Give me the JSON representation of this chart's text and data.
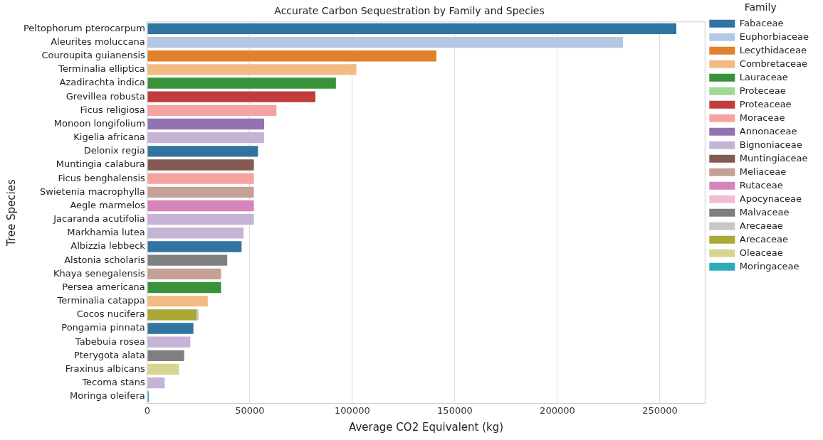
{
  "chart_data": {
    "type": "bar",
    "orientation": "horizontal",
    "title": "Accurate Carbon Sequestration by Family and Species",
    "xlabel": "Average CO2 Equivalent (kg)",
    "ylabel": "Tree Species",
    "legend_title": "Family",
    "legend": "top right",
    "grid": "x",
    "categories": [
      "Peltophorum pterocarpum",
      "Aleurites moluccana",
      "Couroupita guianensis",
      "Terminalia elliptica",
      "Azadirachta indica",
      "Grevillea robusta",
      "Ficus religiosa",
      "Monoon longifolium",
      "Kigelia africana",
      "Delonix regia",
      "Muntingia calabura",
      "Ficus benghalensis",
      "Swietenia macrophylla",
      "Aegle marmelos",
      "Jacaranda acutifolia",
      "Markhamia lutea",
      "Albizzia lebbeck",
      "Alstonia scholaris",
      "Khaya senegalensis",
      "Persea americana",
      "Terminalia catappa",
      "Cocos nucifera",
      "Pongamia pinnata",
      "Tabebuia rosea",
      "Pterygota alata",
      "Fraxinus albicans",
      "Tecoma stans",
      "Moringa oleifera"
    ],
    "xlim": [
      0,
      272000
    ],
    "xticks": [
      0,
      50000,
      100000,
      150000,
      200000,
      250000
    ],
    "series": [
      {
        "name": "Fabaceae",
        "color": "#3274a1",
        "values": [
          258000,
          null,
          null,
          null,
          null,
          null,
          null,
          null,
          null,
          54000,
          null,
          null,
          null,
          null,
          null,
          null,
          46000,
          null,
          null,
          null,
          null,
          null,
          22500,
          null,
          null,
          null,
          null,
          null
        ]
      },
      {
        "name": "Euphorbiaceae",
        "color": "#b4c8e4",
        "values": [
          null,
          232000,
          null,
          null,
          null,
          null,
          null,
          null,
          null,
          null,
          null,
          null,
          null,
          null,
          null,
          null,
          null,
          null,
          null,
          null,
          null,
          null,
          null,
          null,
          null,
          null,
          null,
          null
        ]
      },
      {
        "name": "Lecythidaceae",
        "color": "#e1812c",
        "values": [
          null,
          null,
          141000,
          null,
          null,
          null,
          null,
          null,
          null,
          null,
          null,
          null,
          null,
          null,
          null,
          null,
          null,
          null,
          null,
          null,
          null,
          null,
          null,
          null,
          null,
          null,
          null,
          null
        ]
      },
      {
        "name": "Combretaceae",
        "color": "#f2bb83",
        "values": [
          null,
          null,
          null,
          102000,
          null,
          null,
          null,
          null,
          null,
          null,
          null,
          null,
          null,
          null,
          null,
          null,
          null,
          null,
          null,
          null,
          29500,
          null,
          null,
          null,
          null,
          null,
          null,
          null
        ]
      },
      {
        "name": "Lauraceae",
        "color": "#3a923a",
        "values": [
          null,
          null,
          null,
          null,
          92000,
          null,
          null,
          null,
          null,
          null,
          null,
          null,
          null,
          null,
          null,
          null,
          null,
          null,
          null,
          36000,
          null,
          null,
          null,
          null,
          null,
          null,
          null,
          null
        ]
      },
      {
        "name": "Proteceae",
        "color": "#9fd893",
        "values": [
          null,
          null,
          null,
          null,
          null,
          null,
          null,
          null,
          null,
          null,
          null,
          null,
          null,
          null,
          null,
          null,
          null,
          null,
          null,
          null,
          null,
          null,
          null,
          null,
          null,
          null,
          null,
          null
        ]
      },
      {
        "name": "Proteaceae",
        "color": "#c03d3e",
        "values": [
          null,
          null,
          null,
          null,
          null,
          82000,
          null,
          null,
          null,
          null,
          null,
          null,
          null,
          null,
          null,
          null,
          null,
          null,
          null,
          null,
          null,
          null,
          null,
          null,
          null,
          null,
          null,
          null
        ]
      },
      {
        "name": "Moraceae",
        "color": "#f5a3a1",
        "values": [
          null,
          null,
          null,
          null,
          null,
          null,
          63000,
          null,
          null,
          null,
          null,
          52000,
          null,
          null,
          null,
          null,
          null,
          null,
          null,
          null,
          null,
          null,
          null,
          null,
          null,
          null,
          null,
          null
        ]
      },
      {
        "name": "Annonaceae",
        "color": "#9372b2",
        "values": [
          null,
          null,
          null,
          null,
          null,
          null,
          null,
          57000,
          null,
          null,
          null,
          null,
          null,
          null,
          null,
          null,
          null,
          null,
          null,
          null,
          null,
          null,
          null,
          null,
          null,
          null,
          null,
          null
        ]
      },
      {
        "name": "Bignoniaceae",
        "color": "#c6b4d6",
        "values": [
          null,
          null,
          null,
          null,
          null,
          null,
          null,
          null,
          57000,
          null,
          null,
          null,
          null,
          null,
          52000,
          47000,
          null,
          null,
          null,
          null,
          null,
          null,
          null,
          21000,
          null,
          null,
          8500,
          null
        ]
      },
      {
        "name": "Muntingiaceae",
        "color": "#845b53",
        "values": [
          null,
          null,
          null,
          null,
          null,
          null,
          null,
          null,
          null,
          null,
          52000,
          null,
          null,
          null,
          null,
          null,
          null,
          null,
          null,
          null,
          null,
          null,
          null,
          null,
          null,
          null,
          null,
          null
        ]
      },
      {
        "name": "Meliaceae",
        "color": "#c4a096",
        "values": [
          null,
          null,
          null,
          null,
          null,
          null,
          null,
          null,
          null,
          null,
          null,
          null,
          52000,
          null,
          null,
          null,
          null,
          null,
          36000,
          null,
          null,
          null,
          null,
          null,
          null,
          null,
          null,
          null
        ]
      },
      {
        "name": "Rutaceae",
        "color": "#d684bd",
        "values": [
          null,
          null,
          null,
          null,
          null,
          null,
          null,
          null,
          null,
          null,
          null,
          null,
          null,
          52000,
          null,
          null,
          null,
          null,
          null,
          null,
          null,
          null,
          null,
          null,
          null,
          null,
          null,
          null
        ]
      },
      {
        "name": "Apocynaceae",
        "color": "#f2bcd5",
        "values": [
          null,
          null,
          null,
          null,
          null,
          null,
          null,
          null,
          null,
          null,
          null,
          null,
          null,
          null,
          null,
          null,
          null,
          null,
          null,
          null,
          null,
          null,
          null,
          null,
          null,
          null,
          null,
          null
        ]
      },
      {
        "name": "Malvaceae",
        "color": "#7f7f7f",
        "values": [
          null,
          null,
          null,
          null,
          null,
          null,
          null,
          null,
          null,
          null,
          null,
          null,
          null,
          null,
          null,
          null,
          null,
          39000,
          null,
          null,
          null,
          null,
          null,
          null,
          18000,
          null,
          null,
          null
        ]
      },
      {
        "name": "Arecaeae",
        "color": "#c7c7c7",
        "values": [
          null,
          null,
          null,
          null,
          null,
          null,
          null,
          null,
          null,
          null,
          null,
          null,
          null,
          null,
          null,
          null,
          null,
          null,
          null,
          null,
          null,
          25000,
          null,
          null,
          null,
          null,
          null,
          null
        ]
      },
      {
        "name": "Arecaceae",
        "color": "#a9aa35",
        "values": [
          null,
          null,
          null,
          null,
          null,
          null,
          null,
          null,
          null,
          null,
          null,
          null,
          null,
          null,
          null,
          null,
          null,
          null,
          null,
          null,
          null,
          24000,
          null,
          null,
          null,
          null,
          null,
          null
        ]
      },
      {
        "name": "Oleaceae",
        "color": "#d6d692",
        "values": [
          null,
          null,
          null,
          null,
          null,
          null,
          null,
          null,
          null,
          null,
          null,
          null,
          null,
          null,
          null,
          null,
          null,
          null,
          null,
          null,
          null,
          null,
          null,
          null,
          null,
          15500,
          null,
          null
        ]
      },
      {
        "name": "Moringaceae",
        "color": "#2eabb8",
        "values": [
          null,
          null,
          null,
          null,
          null,
          null,
          null,
          null,
          null,
          null,
          null,
          null,
          null,
          null,
          null,
          null,
          null,
          null,
          null,
          null,
          null,
          null,
          null,
          null,
          null,
          null,
          null,
          800
        ]
      }
    ]
  }
}
